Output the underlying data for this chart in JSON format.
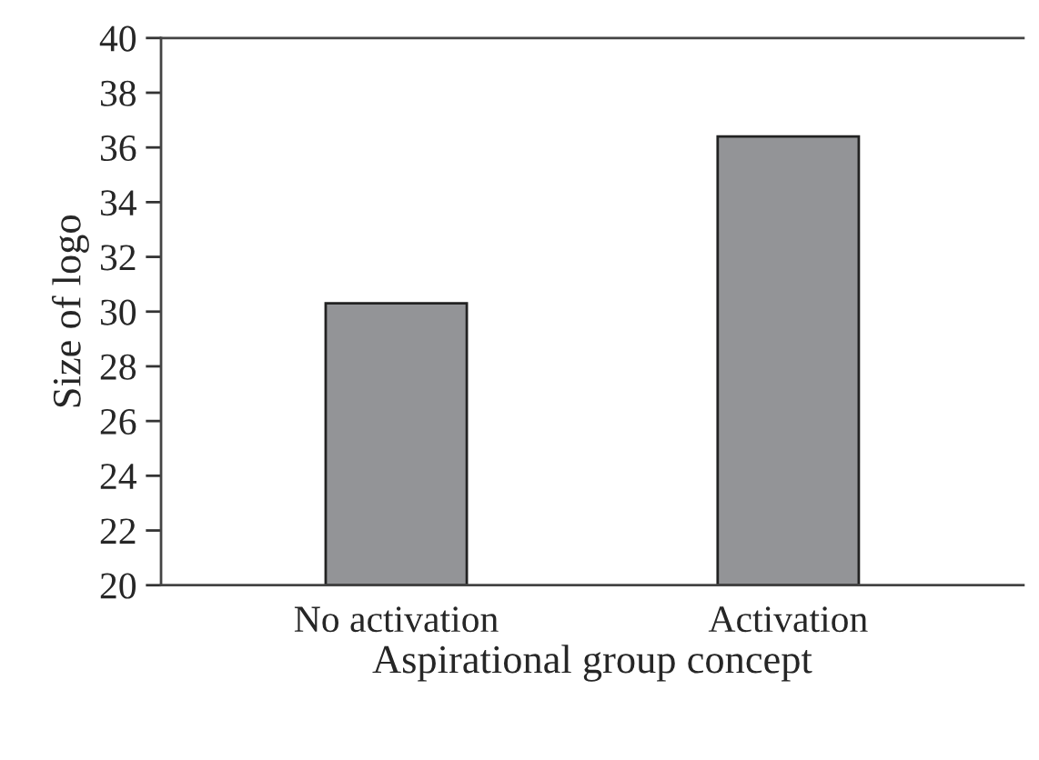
{
  "chart_data": {
    "type": "bar",
    "xlabel": "Aspirational group concept",
    "ylabel": "Size of logo",
    "categories": [
      "No activation",
      "Activation"
    ],
    "values": [
      30.3,
      36.4
    ],
    "color": "#939497",
    "ylim": [
      20,
      40
    ],
    "yticks": [
      20,
      22,
      24,
      26,
      28,
      30,
      32,
      34,
      36,
      38,
      40
    ],
    "grid": false,
    "legend": false
  }
}
